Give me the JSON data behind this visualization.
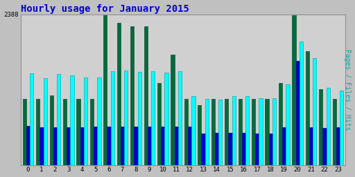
{
  "title": "Hourly usage for January 2015",
  "ylabel": "Pages / Files / Hits",
  "hours": [
    0,
    1,
    2,
    3,
    4,
    5,
    6,
    7,
    8,
    9,
    10,
    11,
    12,
    13,
    14,
    15,
    16,
    17,
    18,
    19,
    20,
    21,
    22,
    23
  ],
  "pages": [
    1050,
    1050,
    1100,
    1050,
    1050,
    1050,
    2380,
    2250,
    2200,
    2200,
    1300,
    1750,
    1050,
    950,
    1050,
    1050,
    1050,
    1050,
    1050,
    1300,
    2370,
    1800,
    1200,
    1050
  ],
  "files": [
    620,
    600,
    600,
    600,
    600,
    610,
    610,
    610,
    610,
    610,
    610,
    610,
    610,
    500,
    510,
    510,
    510,
    500,
    500,
    600,
    1650,
    600,
    590,
    600
  ],
  "hits": [
    1450,
    1380,
    1440,
    1420,
    1390,
    1390,
    1490,
    1500,
    1480,
    1490,
    1470,
    1490,
    1090,
    1050,
    1040,
    1090,
    1090,
    1060,
    1060,
    1280,
    1960,
    1700,
    1220,
    1180
  ],
  "pages_color": "#006b3c",
  "files_color": "#0000cc",
  "hits_color": "#00ffff",
  "hits_edge": "#008888",
  "bg_color": "#c0c0c0",
  "plot_bg": "#d0d0d0",
  "title_color": "#0000cc",
  "ylabel_color": "#00aaaa",
  "ymax": 2388,
  "ytick_label": "2388",
  "grid_color": "#b0b0b0"
}
